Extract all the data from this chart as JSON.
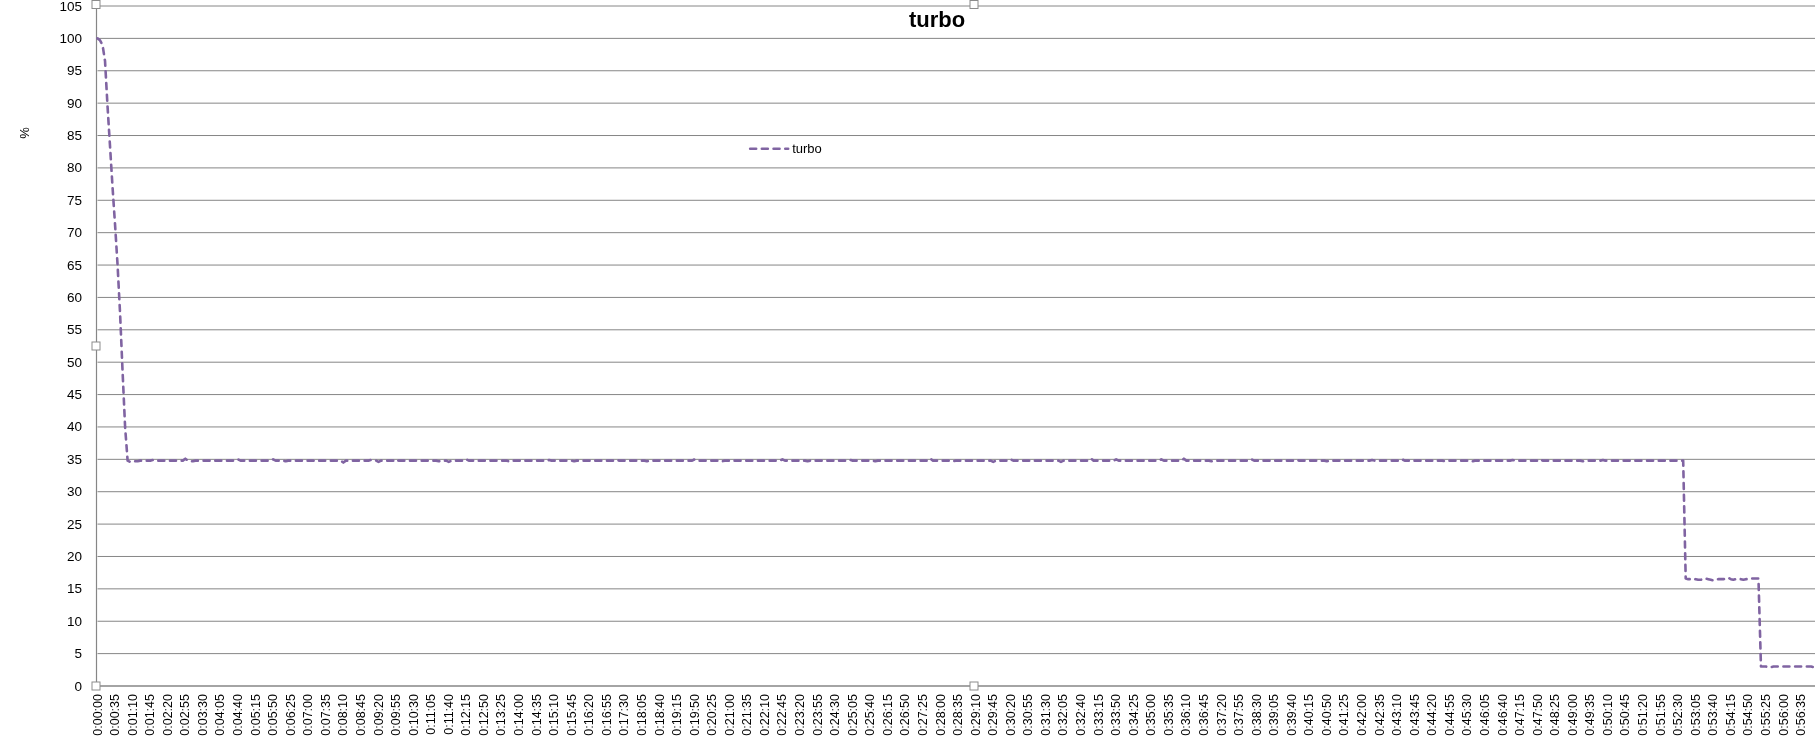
{
  "chart_data": {
    "type": "line",
    "title": "turbo",
    "ylabel": "%",
    "categories": [
      "0:00:00",
      null,
      null,
      null,
      null,
      null,
      null,
      "0:00:35",
      null,
      null,
      null,
      null,
      null,
      null,
      "0:01:10",
      null,
      null,
      null,
      null,
      null,
      null,
      "0:01:45",
      null,
      null,
      null,
      null,
      null,
      null,
      "0:02:20",
      null,
      null,
      null,
      null,
      null,
      null,
      "0:02:55",
      null,
      null,
      null,
      null,
      null,
      null,
      "0:03:30",
      null,
      null,
      null,
      null,
      null,
      null,
      "0:04:05",
      null,
      null,
      null,
      null,
      null,
      null,
      "0:04:40",
      null,
      null,
      null,
      null,
      null,
      null,
      "0:05:15",
      null,
      null,
      null,
      null,
      null,
      null,
      "0:05:50",
      null,
      null,
      null,
      null,
      null,
      null,
      "0:06:25",
      null,
      null,
      null,
      null,
      null,
      null,
      "0:07:00",
      null,
      null,
      null,
      null,
      null,
      null,
      "0:07:35",
      null,
      null,
      null,
      null,
      null,
      null,
      "0:08:10",
      null,
      null,
      null,
      null,
      null,
      null,
      "0:08:45",
      null,
      null,
      null,
      null,
      null,
      null,
      "0:09:20",
      null,
      null,
      null,
      null,
      null,
      null,
      "0:09:55",
      null,
      null,
      null,
      null,
      null,
      null,
      "0:10:30",
      null,
      null,
      null,
      null,
      null,
      null,
      "0:11:05",
      null,
      null,
      null,
      null,
      null,
      null,
      "0:11:40",
      null,
      null,
      null,
      null,
      null,
      null,
      "0:12:15",
      null,
      null,
      null,
      null,
      null,
      null,
      "0:12:50",
      null,
      null,
      null,
      null,
      null,
      null,
      "0:13:25",
      null,
      null,
      null,
      null,
      null,
      null,
      "0:14:00",
      null,
      null,
      null,
      null,
      null,
      null,
      "0:14:35",
      null,
      null,
      null,
      null,
      null,
      null,
      "0:15:10",
      null,
      null,
      null,
      null,
      null,
      null,
      "0:15:45",
      null,
      null,
      null,
      null,
      null,
      null,
      "0:16:20",
      null,
      null,
      null,
      null,
      null,
      null,
      "0:16:55",
      null,
      null,
      null,
      null,
      null,
      null,
      "0:17:30",
      null,
      null,
      null,
      null,
      null,
      null,
      "0:18:05",
      null,
      null,
      null,
      null,
      null,
      null,
      "0:18:40",
      null,
      null,
      null,
      null,
      null,
      null,
      "0:19:15",
      null,
      null,
      null,
      null,
      null,
      null,
      "0:19:50",
      null,
      null,
      null,
      null,
      null,
      null,
      "0:20:25",
      null,
      null,
      null,
      null,
      null,
      null,
      "0:21:00",
      null,
      null,
      null,
      null,
      null,
      null,
      "0:21:35",
      null,
      null,
      null,
      null,
      null,
      null,
      "0:22:10",
      null,
      null,
      null,
      null,
      null,
      null,
      "0:22:45",
      null,
      null,
      null,
      null,
      null,
      null,
      "0:23:20",
      null,
      null,
      null,
      null,
      null,
      null,
      "0:23:55",
      null,
      null,
      null,
      null,
      null,
      null,
      "0:24:30",
      null,
      null,
      null,
      null,
      null,
      null,
      "0:25:05",
      null,
      null,
      null,
      null,
      null,
      null,
      "0:25:40",
      null,
      null,
      null,
      null,
      null,
      null,
      "0:26:15",
      null,
      null,
      null,
      null,
      null,
      null,
      "0:26:50",
      null,
      null,
      null,
      null,
      null,
      null,
      "0:27:25",
      null,
      null,
      null,
      null,
      null,
      null,
      "0:28:00",
      null,
      null,
      null,
      null,
      null,
      null,
      "0:28:35",
      null,
      null,
      null,
      null,
      null,
      null,
      "0:29:10",
      null,
      null,
      null,
      null,
      null,
      null,
      "0:29:45",
      null,
      null,
      null,
      null,
      null,
      null,
      "0:30:20",
      null,
      null,
      null,
      null,
      null,
      null,
      "0:30:55",
      null,
      null,
      null,
      null,
      null,
      null,
      "0:31:30",
      null,
      null,
      null,
      null,
      null,
      null,
      "0:32:05",
      null,
      null,
      null,
      null,
      null,
      null,
      "0:32:40",
      null,
      null,
      null,
      null,
      null,
      null,
      "0:33:15",
      null,
      null,
      null,
      null,
      null,
      null,
      "0:33:50",
      null,
      null,
      null,
      null,
      null,
      null,
      "0:34:25",
      null,
      null,
      null,
      null,
      null,
      null,
      "0:35:00",
      null,
      null,
      null,
      null,
      null,
      null,
      "0:35:35",
      null,
      null,
      null,
      null,
      null,
      null,
      "0:36:10",
      null,
      null,
      null,
      null,
      null,
      null,
      "0:36:45",
      null,
      null,
      null,
      null,
      null,
      null,
      "0:37:20",
      null,
      null,
      null,
      null,
      null,
      null,
      "0:37:55",
      null,
      null,
      null,
      null,
      null,
      null,
      "0:38:30",
      null,
      null,
      null,
      null,
      null,
      null,
      "0:39:05",
      null,
      null,
      null,
      null,
      null,
      null,
      "0:39:40",
      null,
      null,
      null,
      null,
      null,
      null,
      "0:40:15",
      null,
      null,
      null,
      null,
      null,
      null,
      "0:40:50",
      null,
      null,
      null,
      null,
      null,
      null,
      "0:41:25",
      null,
      null,
      null,
      null,
      null,
      null,
      "0:42:00",
      null,
      null,
      null,
      null,
      null,
      null,
      "0:42:35",
      null,
      null,
      null,
      null,
      null,
      null,
      "0:43:10",
      null,
      null,
      null,
      null,
      null,
      null,
      "0:43:45",
      null,
      null,
      null,
      null,
      null,
      null,
      "0:44:20",
      null,
      null,
      null,
      null,
      null,
      null,
      "0:44:55",
      null,
      null,
      null,
      null,
      null,
      null,
      "0:45:30",
      null,
      null,
      null,
      null,
      null,
      null,
      "0:46:05",
      null,
      null,
      null,
      null,
      null,
      null,
      "0:46:40",
      null,
      null,
      null,
      null,
      null,
      null,
      "0:47:15",
      null,
      null,
      null,
      null,
      null,
      null,
      "0:47:50",
      null,
      null,
      null,
      null,
      null,
      null,
      "0:48:25",
      null,
      null,
      null,
      null,
      null,
      null,
      "0:49:00",
      null,
      null,
      null,
      null,
      null,
      null,
      "0:49:35",
      null,
      null,
      null,
      null,
      null,
      null,
      "0:50:10",
      null,
      null,
      null,
      null,
      null,
      null,
      "0:50:45",
      null,
      null,
      null,
      null,
      null,
      null,
      "0:51:20",
      null,
      null,
      null,
      null,
      null,
      null,
      "0:51:55",
      null,
      null,
      null,
      null,
      null,
      null,
      "0:52:30",
      null,
      null,
      null,
      null,
      null,
      null,
      "0:53:05",
      null,
      null,
      null,
      null,
      null,
      null,
      "0:53:40",
      null,
      null,
      null,
      null,
      null,
      null,
      "0:54:15",
      null,
      null,
      null,
      null,
      null,
      null,
      "0:54:50",
      null,
      null,
      null,
      null,
      null,
      null,
      "0:55:25",
      null,
      null,
      null,
      null,
      null,
      null,
      "0:56:00",
      null,
      null,
      null,
      null,
      null,
      null,
      "0:56:35",
      null,
      null,
      null,
      null,
      null
    ],
    "series": [
      {
        "name": "turbo",
        "color": "#8064a2",
        "values": [
          100,
          99.7,
          99,
          96.5,
          89.5,
          83.3,
          77,
          71.2,
          65,
          57.5,
          48.5,
          40,
          34.8,
          34.6,
          34.7,
          34.7,
          34.7,
          34.8,
          34.8,
          34.8,
          34.8,
          34.8,
          34.9,
          34.8,
          34.8,
          34.8,
          34.8,
          34.8,
          34.8,
          34.8,
          34.8,
          34.8,
          34.8,
          34.8,
          34.8,
          35.1,
          34.8,
          34.7,
          34.7,
          34.8,
          34.8,
          34.8,
          34.8,
          34.8,
          34.8,
          34.8,
          34.8,
          34.8,
          34.8,
          34.8,
          34.8,
          34.8,
          34.8,
          34.8,
          34.8,
          34.9,
          35,
          34.8,
          34.8,
          34.8,
          34.8,
          34.8,
          34.8,
          34.8,
          34.8,
          34.8,
          34.8,
          34.8,
          34.8,
          34.8,
          35,
          34.8,
          34.8,
          34.8,
          34.8,
          34.7,
          34.8,
          34.8,
          34.8,
          34.8,
          34.8,
          34.8,
          34.8,
          34.8,
          34.8,
          34.8,
          34.8,
          34.7,
          34.8,
          34.8,
          34.8,
          34.8,
          34.8,
          34.8,
          34.8,
          34.8,
          34.8,
          34.8,
          34.5,
          34.8,
          34.8,
          34.8,
          34.8,
          34.8,
          34.8,
          34.8,
          34.8,
          34.8,
          34.8,
          34.9,
          34.8,
          34.8,
          34.6,
          34.8,
          34.8,
          34.8,
          34.8,
          34.8,
          34.8,
          35,
          34.8,
          34.8,
          34.8,
          34.8,
          34.8,
          34.8,
          34.8,
          34.8,
          34.8,
          34.8,
          34.8,
          34.8,
          34.8,
          34.8,
          34.8,
          34.8,
          34.7,
          34.8,
          34.8,
          34.8,
          34.6,
          34.8,
          34.8,
          34.8,
          34.8,
          34.8,
          34.8,
          35,
          34.8,
          34.8,
          34.8,
          34.8,
          34.8,
          34.8,
          34.8,
          34.8,
          34.8,
          34.8,
          34.8,
          34.8,
          34.8,
          34.8,
          34.8,
          34.8,
          34.7,
          34.8,
          34.8,
          34.8,
          34.8,
          34.8,
          34.8,
          34.8,
          34.8,
          34.8,
          34.8,
          34.8,
          34.8,
          34.8,
          34.8,
          34.8,
          34.9,
          34.8,
          34.8,
          34.8,
          34.8,
          34.8,
          34.8,
          34.8,
          34.8,
          34.8,
          34.7,
          34.8,
          34.8,
          34.8,
          34.8,
          34.8,
          34.8,
          34.8,
          34.8,
          34.8,
          34.8,
          34.8,
          34.8,
          34.8,
          34.8,
          34.8,
          34.8,
          34.9,
          34.8,
          34.8,
          34.8,
          34.8,
          34.8,
          34.8,
          34.8,
          34.8,
          34.8,
          34.8,
          34.8,
          34.7,
          34.8,
          34.8,
          34.8,
          34.8,
          34.8,
          34.8,
          34.8,
          34.8,
          34.8,
          34.8,
          34.8,
          34.8,
          34.8,
          34.8,
          34.8,
          34.8,
          34.8,
          34.8,
          35,
          34.8,
          34.8,
          34.8,
          34.8,
          34.8,
          34.8,
          34.8,
          34.8,
          34.8,
          34.8,
          34.7,
          34.8,
          34.8,
          34.8,
          34.8,
          34.8,
          34.8,
          34.8,
          34.8,
          34.8,
          34.8,
          34.8,
          34.8,
          34.8,
          34.8,
          34.8,
          34.8,
          34.8,
          34.8,
          34.8,
          34.8,
          34.8,
          34.8,
          34.8,
          35,
          34.8,
          34.8,
          34.8,
          34.8,
          34.8,
          34.8,
          34.8,
          34.8,
          34.8,
          34.7,
          34.8,
          34.8,
          34.8,
          34.8,
          34.8,
          34.8,
          34.8,
          34.8,
          34.8,
          34.8,
          34.8,
          34.8,
          34.8,
          34.8,
          34.8,
          34.8,
          34.9,
          34.8,
          34.8,
          34.8,
          34.8,
          34.8,
          34.8,
          34.8,
          34.8,
          34.8,
          34.7,
          34.8,
          34.8,
          34.8,
          34.8,
          34.8,
          34.8,
          34.8,
          34.8,
          34.8,
          34.8,
          34.8,
          34.8,
          34.8,
          34.8,
          34.8,
          34.8,
          34.8,
          34.8,
          34.8,
          34.8,
          34.8,
          35.1,
          34.8,
          34.8,
          34.8,
          34.8,
          34.8,
          34.8,
          34.8,
          34.8,
          34.7,
          34.8,
          34.8,
          34.8,
          34.8,
          34.8,
          34.8,
          34.8,
          34.8,
          34.8,
          34.8,
          34.8,
          34.8,
          34.8,
          34.8,
          34.8,
          34.6,
          34.8,
          34.8,
          34.8,
          34.8,
          34.8,
          34.8,
          35,
          34.8,
          34.8,
          34.8,
          34.8,
          34.8,
          34.8,
          34.8,
          34.8,
          34.8,
          34.8,
          34.8,
          34.8,
          34.8,
          34.8,
          34.8,
          34.8,
          34.8,
          34.8,
          34.8,
          34.6,
          34.8,
          34.8,
          34.8,
          34.8,
          34.8,
          34.8,
          34.8,
          34.8,
          34.8,
          34.8,
          34.8,
          35.1,
          34.8,
          34.8,
          34.8,
          34.8,
          34.8,
          34.8,
          34.8,
          34.8,
          34.8,
          35,
          34.8,
          34.8,
          34.8,
          34.8,
          34.8,
          34.8,
          34.8,
          34.8,
          34.8,
          34.8,
          34.8,
          34.8,
          34.8,
          34.8,
          34.8,
          34.8,
          34.8,
          35,
          34.8,
          34.8,
          34.8,
          34.8,
          34.8,
          34.8,
          34.8,
          34.8,
          35.1,
          34.8,
          34.8,
          34.8,
          34.8,
          34.8,
          34.8,
          34.8,
          34.8,
          34.8,
          34.8,
          34.7,
          34.8,
          34.8,
          34.8,
          34.8,
          34.8,
          34.8,
          34.8,
          34.8,
          34.8,
          34.8,
          34.8,
          34.8,
          34.8,
          34.8,
          34.8,
          35,
          34.8,
          34.8,
          34.8,
          34.8,
          34.8,
          34.8,
          34.8,
          34.8,
          34.8,
          34.8,
          34.8,
          34.8,
          34.8,
          34.8,
          34.8,
          34.8,
          34.8,
          34.9,
          34.8,
          34.8,
          34.8,
          34.8,
          34.8,
          34.8,
          34.8,
          34.8,
          34.8,
          34.8,
          34.8,
          34.7,
          34.8,
          34.8,
          34.8,
          34.8,
          34.8,
          34.8,
          34.8,
          34.8,
          34.8,
          34.8,
          34.8,
          34.8,
          34.8,
          34.8,
          34.8,
          34.8,
          34.8,
          34.9,
          34.8,
          34.8,
          34.8,
          34.8,
          34.8,
          34.8,
          34.8,
          34.8,
          34.8,
          34.8,
          34.8,
          35,
          34.8,
          34.8,
          34.8,
          34.8,
          34.8,
          34.8,
          34.8,
          34.8,
          34.8,
          34.8,
          34.8,
          34.8,
          34.8,
          34.8,
          34.8,
          34.8,
          34.7,
          34.8,
          34.8,
          34.8,
          34.8,
          34.8,
          34.8,
          34.8,
          34.8,
          34.8,
          34.8,
          34.7,
          34.8,
          34.8,
          34.8,
          34.8,
          34.8,
          34.8,
          34.8,
          34.8,
          34.8,
          34.8,
          34.8,
          34.8,
          34.8,
          34.8,
          34.8,
          34.9,
          34.8,
          34.8,
          34.8,
          34.8,
          34.8,
          34.8,
          34.8,
          34.8,
          34.8,
          34.8,
          35,
          34.8,
          34.8,
          34.8,
          34.8,
          34.8,
          34.8,
          34.8,
          34.8,
          34.8,
          34.8,
          34.8,
          34.8,
          34.8,
          34.8,
          34.8,
          34.8,
          34.7,
          34.8,
          34.8,
          34.8,
          34.8,
          34.8,
          34.8,
          34.8,
          34.9,
          34.8,
          34.8,
          34.8,
          34.8,
          34.8,
          34.8,
          34.8,
          34.8,
          34.8,
          34.8,
          34.8,
          34.8,
          34.8,
          34.8,
          34.8,
          34.8,
          34.8,
          34.8,
          34.8,
          34.8,
          34.8,
          34.8,
          34.8,
          34.8,
          34.8,
          34.8,
          34.8,
          34.8,
          34.8,
          34.8,
          34.8,
          34.8,
          16.6,
          16.5,
          16.5,
          16.4,
          16.5,
          16.4,
          16.4,
          16.5,
          16.6,
          16.5,
          16.4,
          16.3,
          16.4,
          16.5,
          16.5,
          16.5,
          16.6,
          16.7,
          16.5,
          16.4,
          16.5,
          16.5,
          16.5,
          16.4,
          16.5,
          16.5,
          16.6,
          16.6,
          16.6,
          16.6,
          3,
          3,
          3,
          2.9,
          2.9,
          3,
          3,
          3,
          3,
          3,
          3,
          3,
          3,
          3,
          3,
          3,
          3,
          3,
          3,
          3,
          3,
          2.9
        ]
      }
    ],
    "ylim": [
      0,
      105
    ],
    "yticks": [
      0,
      5,
      10,
      15,
      20,
      25,
      30,
      35,
      40,
      45,
      50,
      55,
      60,
      65,
      70,
      75,
      80,
      85,
      90,
      95,
      100,
      105
    ],
    "grid": "y",
    "legend": "top",
    "line_style": "dashed"
  }
}
